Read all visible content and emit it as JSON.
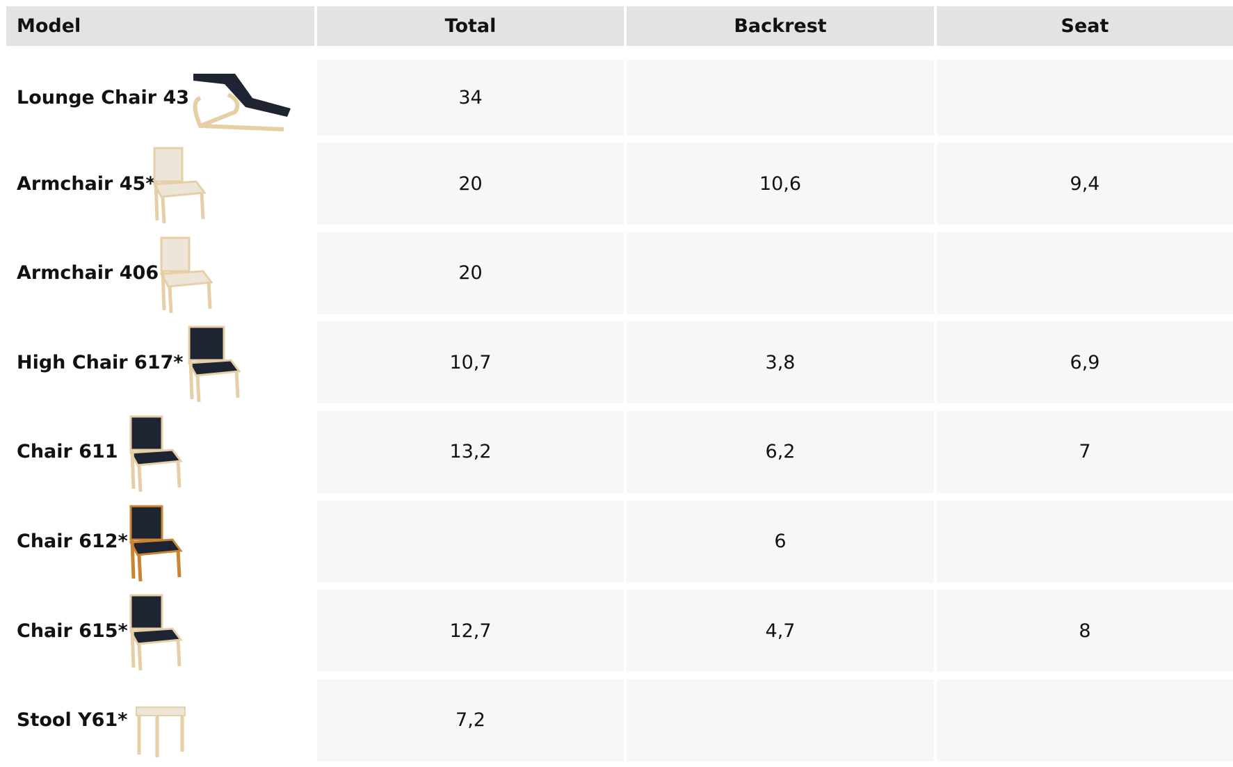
{
  "table": {
    "header": [
      "Model",
      "Total",
      "Backrest",
      "Seat"
    ],
    "rows": [
      {
        "model": "Lounge Chair 43",
        "total": "34"
      },
      {
        "model": "Armchair 45*",
        "total": "20",
        "backrest": "10,6",
        "seat": "9,4"
      },
      {
        "model": "Armchair 406",
        "total": "20"
      },
      {
        "model": "High Chair 617*",
        "total": "10,7",
        "backrest": "3,8",
        "seat": "6,9"
      },
      {
        "model": "Chair 611",
        "total": "13,2",
        "backrest": "6,2",
        "seat": "7"
      },
      {
        "model": "Chair 612*",
        "backrest": "6"
      },
      {
        "model": "Chair 615*",
        "total": "12,7",
        "backrest": "4,7",
        "seat": "8"
      },
      {
        "model": "Stool Y61*",
        "total": "7,2"
      }
    ]
  }
}
